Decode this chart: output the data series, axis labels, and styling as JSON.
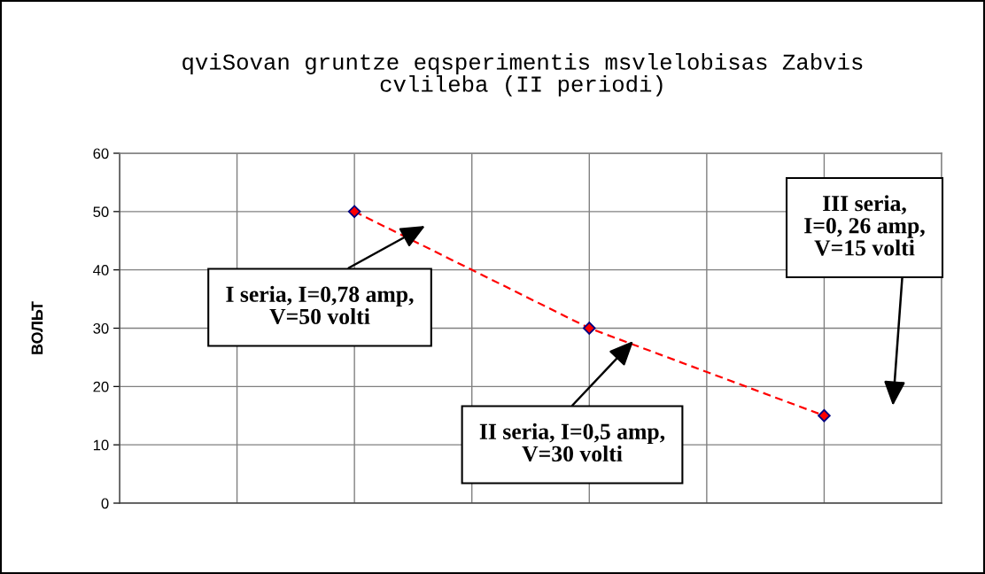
{
  "chart_data": {
    "type": "line",
    "title": "qviSovan gruntze eqsperimentis msvlelobisas Zabvis\ncvlileba (II periodi)",
    "ylabel": "ВОЛЬТ",
    "categories": [
      null,
      null,
      null
    ],
    "series": [
      {
        "color": "#ff0000",
        "values": [
          50,
          30,
          15
        ]
      }
    ],
    "ylim": [
      0,
      60
    ],
    "yticks": [
      0,
      10,
      20,
      30,
      40,
      50,
      60
    ],
    "grid": true,
    "marker": "diamond",
    "line_style": "dashed",
    "tick_labels": "y",
    "annotations": [
      "I seria, I=0,78 amp,\nV=50 volti",
      "II seria, I=0,5 amp,\nV=30 volti",
      "III seria,\nI=0, 26 amp,\nV=15 volti"
    ]
  }
}
